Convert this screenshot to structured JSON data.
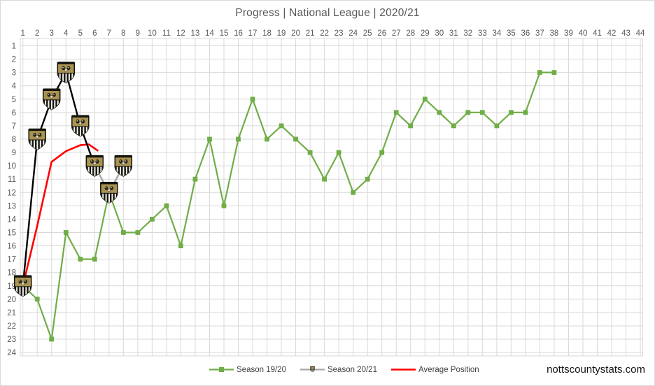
{
  "watermark": "nottscountystats.com",
  "colors": {
    "grid": "#d9d9d9",
    "axis_text": "#595959",
    "title_text": "#595959",
    "badge_gold": "#a99350",
    "season_19_20_green": "#70ad47",
    "season_20_21_black": "#000000",
    "season_20_21_gray": "#a6a6a6",
    "average_red": "#ff0000"
  },
  "chart_data": {
    "type": "line",
    "title": "Progress | National League | 2020/21",
    "grid": true,
    "legend_position": "bottom-center",
    "x_axis": {
      "position": "top",
      "ticks": [
        1,
        2,
        3,
        4,
        5,
        6,
        7,
        8,
        9,
        10,
        11,
        12,
        13,
        14,
        15,
        16,
        17,
        18,
        19,
        20,
        21,
        22,
        23,
        24,
        25,
        26,
        27,
        28,
        29,
        30,
        31,
        32,
        33,
        34,
        35,
        36,
        37,
        38,
        39,
        40,
        41,
        42,
        43,
        44
      ]
    },
    "y_axis": {
      "position": "left",
      "direction": "inverted",
      "ticks": [
        1,
        2,
        3,
        4,
        5,
        6,
        7,
        8,
        9,
        10,
        11,
        12,
        13,
        14,
        15,
        16,
        17,
        18,
        19,
        20,
        21,
        22,
        23,
        24
      ]
    },
    "series": [
      {
        "name": "Season 19/20",
        "color": "#70ad47",
        "marker": "square",
        "first_match": 1,
        "values": [
          19,
          20,
          23,
          15,
          17,
          17,
          12,
          15,
          15,
          14,
          13,
          16,
          11,
          8,
          13,
          8,
          5,
          8,
          7,
          8,
          9,
          11,
          9,
          12,
          11,
          9,
          6,
          7,
          5,
          6,
          7,
          6,
          6,
          7,
          6,
          6,
          3,
          3
        ]
      },
      {
        "name": "Season 20/21",
        "line_color_early": "#000000",
        "line_color_late": "#a6a6a6",
        "black_line_through_match": 6,
        "marker": "notts-county-club-badge",
        "first_match": 1,
        "values": [
          19,
          8,
          5,
          3,
          7,
          10,
          12,
          10
        ]
      },
      {
        "name": "Average Position",
        "color": "#ff0000",
        "points": [
          [
            1,
            19
          ],
          [
            2,
            14.5
          ],
          [
            3,
            9.7
          ],
          [
            4,
            8.9
          ],
          [
            5,
            8.45
          ],
          [
            5.6,
            8.4
          ],
          [
            6.2,
            8.85
          ]
        ]
      }
    ]
  }
}
